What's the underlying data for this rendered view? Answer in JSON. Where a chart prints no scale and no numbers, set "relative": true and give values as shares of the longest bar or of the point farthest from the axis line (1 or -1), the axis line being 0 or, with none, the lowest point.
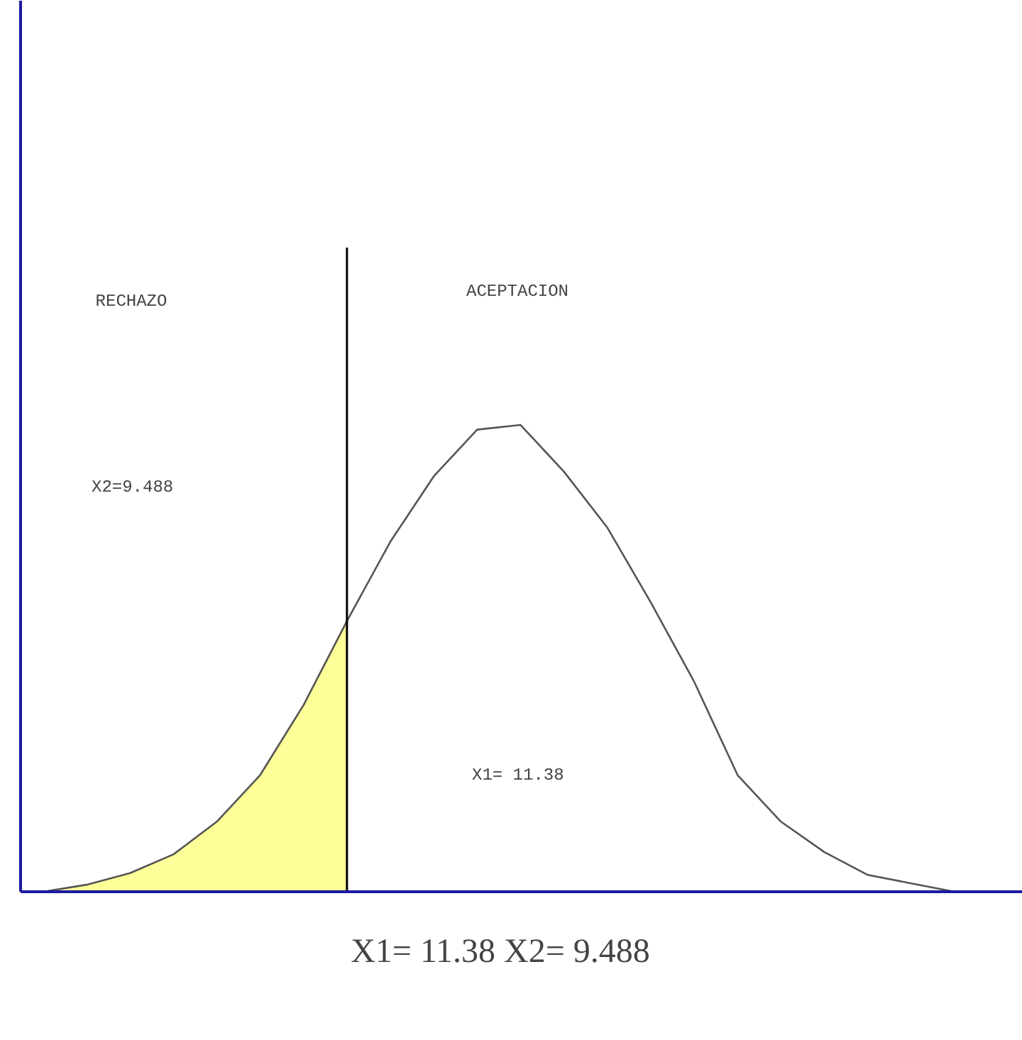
{
  "chart_data": {
    "type": "line",
    "relative": true,
    "categories": [
      null,
      null,
      null,
      null,
      null,
      null,
      null,
      null,
      null,
      null,
      null,
      null,
      null,
      null,
      null,
      null,
      null,
      null,
      null,
      null,
      null,
      null
    ],
    "series": [
      {
        "type": "area",
        "color": "#ffff99",
        "values": [
          0,
          0.015,
          0.04,
          0.08,
          0.15,
          0.25,
          0.4,
          0.58,
          null,
          null,
          null,
          null,
          null,
          null,
          null,
          null,
          null,
          null,
          null,
          null,
          null,
          null
        ]
      },
      {
        "color": "#555555",
        "values": [
          0,
          0.015,
          0.04,
          0.08,
          0.15,
          0.25,
          0.4,
          0.58,
          0.75,
          0.89,
          0.99,
          1,
          0.9,
          0.78,
          0.62,
          0.45,
          0.25,
          0.15,
          0.085,
          0.036,
          0.018,
          0
        ]
      }
    ],
    "annotations": [
      "RECHAZO",
      "ACEPTACION",
      "X2=9.488",
      "X1= 11.38",
      "X1= 11.38      X2= 9.488"
    ]
  }
}
